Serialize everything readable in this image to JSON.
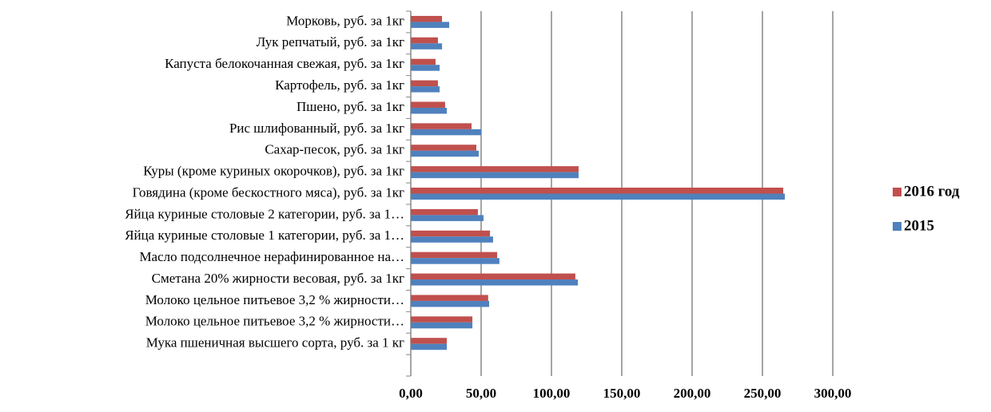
{
  "chart_data": {
    "type": "barh",
    "categories": [
      "Морковь, руб. за 1кг",
      "Лук репчатый, руб. за 1кг",
      "Капуста белокочанная свежая, руб. за 1кг",
      "Картофель, руб. за 1кг",
      "Пшено, руб. за 1кг",
      "Рис шлифованный, руб. за 1кг",
      "Сахар-песок, руб. за 1кг",
      "Куры (кроме куриных окорочков), руб. за 1кг",
      "Говядина (кроме бескостного мяса), руб. за 1кг",
      "Яйца куриные столовые 2 категории, руб. за 1…",
      "Яйца куриные столовые 1 категории, руб. за 1…",
      "Масло подсолнечное нерафинированное на…",
      "Сметана 20% жирности весовая, руб. за 1кг",
      "Молоко цельное питьевое 3,2 % жирности…",
      "Молоко цельное  питьевое 3,2 % жирности…",
      "Мука пшеничная высшего сорта, руб. за 1 кг",
      null
    ],
    "series": [
      {
        "name": "2016 год",
        "color": "#c0504d",
        "values": [
          22.2,
          19.3,
          17.6,
          19.3,
          24.4,
          43.2,
          46.6,
          119.3,
          264.8,
          47.7,
          56.3,
          61.4,
          117,
          55,
          43.8,
          25.6,
          null
        ]
      },
      {
        "name": "2015",
        "color": "#4f81bd",
        "values": [
          27.3,
          22.2,
          20.5,
          20.5,
          25.6,
          50,
          48.3,
          119.3,
          265.9,
          51.7,
          58.5,
          63,
          118.8,
          55.7,
          43.8,
          25.6,
          null
        ]
      }
    ],
    "xlim": [
      0,
      300
    ],
    "xticks": [
      {
        "value": 0,
        "label": "0,00"
      },
      {
        "value": 50,
        "label": "50,00"
      },
      {
        "value": 100,
        "label": "100,00"
      },
      {
        "value": 150,
        "label": "150,00"
      },
      {
        "value": 200,
        "label": "200,00"
      },
      {
        "value": 250,
        "label": "250,00"
      },
      {
        "value": 300,
        "label": "300,00"
      }
    ],
    "grid": true,
    "legend": "right"
  }
}
